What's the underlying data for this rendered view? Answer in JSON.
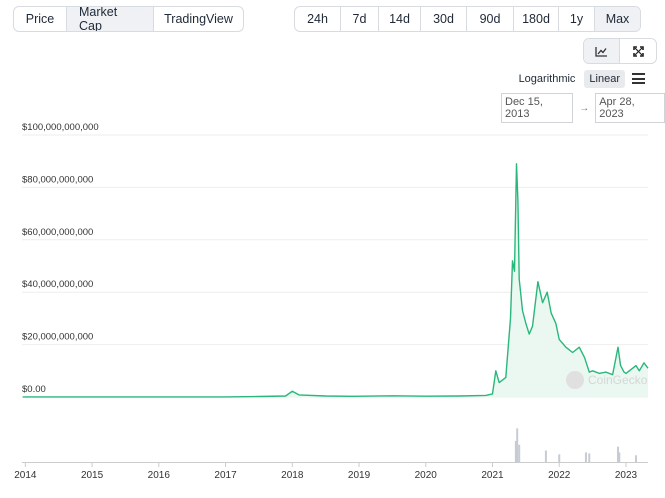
{
  "type_tabs": [
    {
      "label": "Price",
      "active": false
    },
    {
      "label": "Market Cap",
      "active": true
    },
    {
      "label": "TradingView",
      "active": false
    }
  ],
  "range_tabs": [
    {
      "label": "24h",
      "active": false
    },
    {
      "label": "7d",
      "active": false
    },
    {
      "label": "14d",
      "active": false
    },
    {
      "label": "30d",
      "active": false
    },
    {
      "label": "90d",
      "active": false
    },
    {
      "label": "180d",
      "active": false
    },
    {
      "label": "1y",
      "active": false
    },
    {
      "label": "Max",
      "active": true
    }
  ],
  "view_toggle": {
    "icons": [
      "line-chart-icon",
      "expand-icon"
    ],
    "active": "line-chart-icon"
  },
  "scale": {
    "options": [
      "Logarithmic",
      "Linear"
    ],
    "selected": "Linear"
  },
  "menu_icon": "hamburger-menu-icon",
  "date_range": {
    "from": "Dec 15, 2013",
    "to": "Apr 28, 2023",
    "arrow": "→"
  },
  "watermark": "CoinGecko",
  "colors": {
    "line": "#29b77b",
    "area": "#eaf8f1",
    "volume": "#c7cbd3",
    "grid": "#eeeeee",
    "axis_text": "#333333"
  },
  "chart_data": {
    "type": "area",
    "title": "",
    "xlabel": "",
    "ylabel": "",
    "x_ticks": [
      "2014",
      "2015",
      "2016",
      "2017",
      "2018",
      "2019",
      "2020",
      "2021",
      "2022",
      "2023"
    ],
    "y_ticks": [
      "$0.00",
      "$20,000,000,000",
      "$40,000,000,000",
      "$60,000,000,000",
      "$80,000,000,000",
      "$100,000,000,000"
    ],
    "ylim": [
      0,
      100000000000
    ],
    "xlim": [
      2013.95,
      2023.33
    ],
    "grid": true,
    "series": [
      {
        "values_unit": "USD",
        "points": [
          [
            2013.96,
            40000000
          ],
          [
            2014.5,
            30000000
          ],
          [
            2015.5,
            25000000
          ],
          [
            2016.5,
            30000000
          ],
          [
            2017.0,
            40000000
          ],
          [
            2017.5,
            200000000
          ],
          [
            2017.9,
            400000000
          ],
          [
            2018.0,
            2200000000
          ],
          [
            2018.1,
            800000000
          ],
          [
            2018.5,
            400000000
          ],
          [
            2018.9,
            250000000
          ],
          [
            2019.5,
            450000000
          ],
          [
            2020.0,
            300000000
          ],
          [
            2020.5,
            400000000
          ],
          [
            2020.9,
            600000000
          ],
          [
            2021.0,
            1200000000
          ],
          [
            2021.05,
            10000000000
          ],
          [
            2021.1,
            5500000000
          ],
          [
            2021.2,
            7500000000
          ],
          [
            2021.27,
            30000000000
          ],
          [
            2021.3,
            52000000000
          ],
          [
            2021.33,
            48000000000
          ],
          [
            2021.36,
            89000000000
          ],
          [
            2021.38,
            75000000000
          ],
          [
            2021.4,
            45000000000
          ],
          [
            2021.45,
            33000000000
          ],
          [
            2021.5,
            28000000000
          ],
          [
            2021.55,
            24000000000
          ],
          [
            2021.6,
            27000000000
          ],
          [
            2021.68,
            44000000000
          ],
          [
            2021.75,
            36000000000
          ],
          [
            2021.82,
            40000000000
          ],
          [
            2021.88,
            32000000000
          ],
          [
            2021.95,
            28000000000
          ],
          [
            2022.0,
            22000000000
          ],
          [
            2022.1,
            19000000000
          ],
          [
            2022.2,
            17000000000
          ],
          [
            2022.3,
            19000000000
          ],
          [
            2022.38,
            15000000000
          ],
          [
            2022.45,
            9500000000
          ],
          [
            2022.5,
            10000000000
          ],
          [
            2022.6,
            9000000000
          ],
          [
            2022.7,
            9500000000
          ],
          [
            2022.8,
            8500000000
          ],
          [
            2022.88,
            19000000000
          ],
          [
            2022.92,
            12000000000
          ],
          [
            2022.97,
            9500000000
          ],
          [
            2023.0,
            9000000000
          ],
          [
            2023.1,
            11000000000
          ],
          [
            2023.15,
            12000000000
          ],
          [
            2023.2,
            10000000000
          ],
          [
            2023.27,
            13000000000
          ],
          [
            2023.33,
            11000000000
          ]
        ]
      }
    ],
    "volume": [
      [
        2021.35,
        0.22
      ],
      [
        2021.37,
        0.35
      ],
      [
        2021.4,
        0.18
      ],
      [
        2021.8,
        0.12
      ],
      [
        2022.0,
        0.08
      ],
      [
        2022.4,
        0.1
      ],
      [
        2022.45,
        0.09
      ],
      [
        2022.88,
        0.16
      ],
      [
        2022.9,
        0.1
      ],
      [
        2023.15,
        0.07
      ]
    ]
  }
}
